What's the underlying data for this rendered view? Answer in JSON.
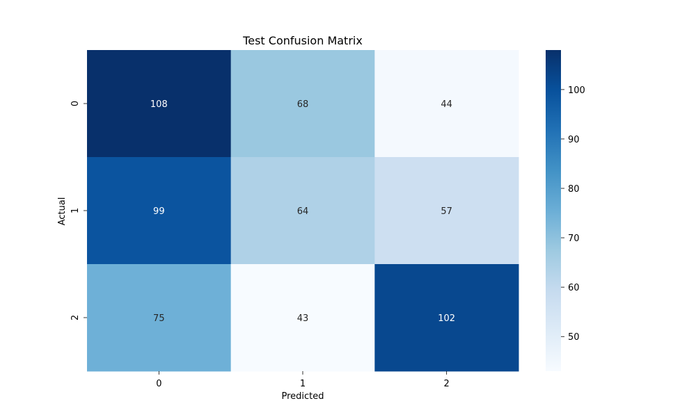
{
  "chart_data": {
    "type": "heatmap",
    "title": "Test Confusion Matrix",
    "xlabel": "Predicted",
    "ylabel": "Actual",
    "x_categories": [
      "0",
      "1",
      "2"
    ],
    "y_categories": [
      "0",
      "1",
      "2"
    ],
    "values": [
      [
        108,
        68,
        44
      ],
      [
        99,
        64,
        57
      ],
      [
        75,
        43,
        102
      ]
    ],
    "colorscale": "Blues",
    "vmin": 43,
    "vmax": 108,
    "colorbar_ticks": [
      50,
      60,
      70,
      80,
      90,
      100
    ],
    "annotation_dark_text": "#262626",
    "annotation_light_text": "#ffffff"
  }
}
